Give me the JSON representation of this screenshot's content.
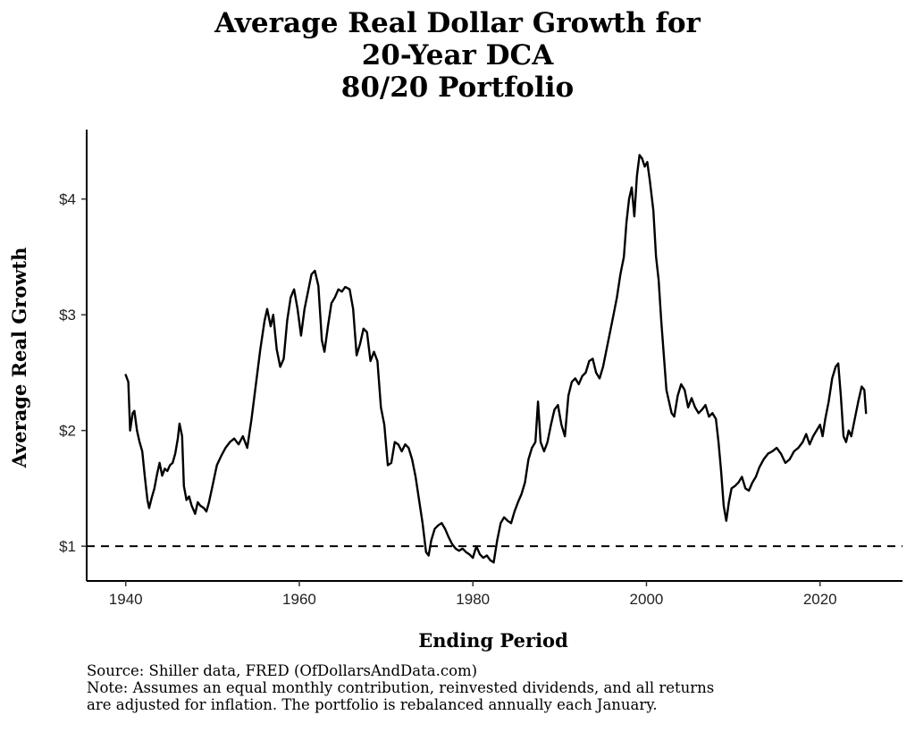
{
  "chart_data": {
    "type": "line",
    "title_lines": [
      "Average Real Dollar Growth for",
      "20-Year DCA",
      "80/20 Portfolio"
    ],
    "xlabel": "Ending Period",
    "ylabel": "Average Real Growth",
    "xlim": [
      1935.5,
      2029.5
    ],
    "ylim": [
      0.7,
      4.6
    ],
    "x_ticks": [
      1940,
      1960,
      1980,
      2000,
      2020
    ],
    "x_tick_labels": [
      "1940",
      "1960",
      "1980",
      "2000",
      "2020"
    ],
    "y_ticks": [
      1,
      2,
      3,
      4
    ],
    "y_tick_labels": [
      "$1",
      "$2",
      "$3",
      "$4"
    ],
    "reference_line": {
      "y": 1,
      "style": "dashed"
    },
    "grid": false,
    "series": [
      {
        "color": "#000000",
        "points": [
          [
            1940.0,
            2.48
          ],
          [
            1940.3,
            2.42
          ],
          [
            1940.5,
            2.0
          ],
          [
            1940.8,
            2.15
          ],
          [
            1941.0,
            2.17
          ],
          [
            1941.3,
            2.0
          ],
          [
            1941.6,
            1.9
          ],
          [
            1941.9,
            1.82
          ],
          [
            1942.2,
            1.6
          ],
          [
            1942.5,
            1.4
          ],
          [
            1942.7,
            1.33
          ],
          [
            1943.0,
            1.42
          ],
          [
            1943.3,
            1.5
          ],
          [
            1943.6,
            1.62
          ],
          [
            1943.9,
            1.72
          ],
          [
            1944.2,
            1.61
          ],
          [
            1944.5,
            1.67
          ],
          [
            1944.8,
            1.65
          ],
          [
            1945.1,
            1.7
          ],
          [
            1945.4,
            1.72
          ],
          [
            1945.7,
            1.8
          ],
          [
            1946.0,
            1.93
          ],
          [
            1946.2,
            2.06
          ],
          [
            1946.5,
            1.95
          ],
          [
            1946.7,
            1.52
          ],
          [
            1947.0,
            1.4
          ],
          [
            1947.3,
            1.43
          ],
          [
            1947.6,
            1.35
          ],
          [
            1948.0,
            1.28
          ],
          [
            1948.3,
            1.38
          ],
          [
            1948.6,
            1.35
          ],
          [
            1949.0,
            1.33
          ],
          [
            1949.3,
            1.3
          ],
          [
            1949.6,
            1.38
          ],
          [
            1950.0,
            1.52
          ],
          [
            1950.5,
            1.7
          ],
          [
            1951.0,
            1.78
          ],
          [
            1951.5,
            1.85
          ],
          [
            1952.0,
            1.9
          ],
          [
            1952.5,
            1.93
          ],
          [
            1953.0,
            1.88
          ],
          [
            1953.5,
            1.95
          ],
          [
            1954.0,
            1.85
          ],
          [
            1954.5,
            2.1
          ],
          [
            1955.0,
            2.4
          ],
          [
            1955.5,
            2.7
          ],
          [
            1956.0,
            2.95
          ],
          [
            1956.3,
            3.05
          ],
          [
            1956.7,
            2.9
          ],
          [
            1957.0,
            3.0
          ],
          [
            1957.4,
            2.7
          ],
          [
            1957.8,
            2.55
          ],
          [
            1958.2,
            2.62
          ],
          [
            1958.6,
            2.95
          ],
          [
            1959.0,
            3.15
          ],
          [
            1959.4,
            3.22
          ],
          [
            1959.8,
            3.05
          ],
          [
            1960.2,
            2.82
          ],
          [
            1960.6,
            3.05
          ],
          [
            1961.0,
            3.2
          ],
          [
            1961.4,
            3.35
          ],
          [
            1961.8,
            3.38
          ],
          [
            1962.2,
            3.25
          ],
          [
            1962.6,
            2.78
          ],
          [
            1962.9,
            2.68
          ],
          [
            1963.3,
            2.9
          ],
          [
            1963.7,
            3.1
          ],
          [
            1964.1,
            3.15
          ],
          [
            1964.5,
            3.22
          ],
          [
            1964.9,
            3.2
          ],
          [
            1965.3,
            3.24
          ],
          [
            1965.8,
            3.22
          ],
          [
            1966.2,
            3.05
          ],
          [
            1966.6,
            2.65
          ],
          [
            1967.0,
            2.75
          ],
          [
            1967.4,
            2.88
          ],
          [
            1967.8,
            2.85
          ],
          [
            1968.2,
            2.6
          ],
          [
            1968.6,
            2.68
          ],
          [
            1969.0,
            2.6
          ],
          [
            1969.4,
            2.2
          ],
          [
            1969.8,
            2.05
          ],
          [
            1970.2,
            1.7
          ],
          [
            1970.6,
            1.72
          ],
          [
            1971.0,
            1.9
          ],
          [
            1971.4,
            1.88
          ],
          [
            1971.8,
            1.82
          ],
          [
            1972.2,
            1.88
          ],
          [
            1972.6,
            1.85
          ],
          [
            1973.0,
            1.75
          ],
          [
            1973.4,
            1.6
          ],
          [
            1973.8,
            1.4
          ],
          [
            1974.2,
            1.2
          ],
          [
            1974.6,
            0.95
          ],
          [
            1974.9,
            0.92
          ],
          [
            1975.2,
            1.05
          ],
          [
            1975.6,
            1.15
          ],
          [
            1976.0,
            1.18
          ],
          [
            1976.4,
            1.2
          ],
          [
            1976.8,
            1.15
          ],
          [
            1977.2,
            1.08
          ],
          [
            1977.6,
            1.02
          ],
          [
            1978.0,
            0.98
          ],
          [
            1978.4,
            0.96
          ],
          [
            1978.8,
            0.98
          ],
          [
            1979.2,
            0.95
          ],
          [
            1979.6,
            0.93
          ],
          [
            1980.0,
            0.9
          ],
          [
            1980.4,
            1.0
          ],
          [
            1980.8,
            0.93
          ],
          [
            1981.2,
            0.9
          ],
          [
            1981.6,
            0.92
          ],
          [
            1982.0,
            0.88
          ],
          [
            1982.4,
            0.86
          ],
          [
            1982.8,
            1.05
          ],
          [
            1983.2,
            1.2
          ],
          [
            1983.6,
            1.25
          ],
          [
            1984.0,
            1.22
          ],
          [
            1984.4,
            1.2
          ],
          [
            1984.8,
            1.3
          ],
          [
            1985.2,
            1.38
          ],
          [
            1985.6,
            1.45
          ],
          [
            1986.0,
            1.55
          ],
          [
            1986.4,
            1.75
          ],
          [
            1986.8,
            1.85
          ],
          [
            1987.2,
            1.9
          ],
          [
            1987.5,
            2.25
          ],
          [
            1987.8,
            1.9
          ],
          [
            1988.2,
            1.82
          ],
          [
            1988.6,
            1.9
          ],
          [
            1989.0,
            2.05
          ],
          [
            1989.4,
            2.18
          ],
          [
            1989.8,
            2.22
          ],
          [
            1990.2,
            2.05
          ],
          [
            1990.6,
            1.95
          ],
          [
            1991.0,
            2.3
          ],
          [
            1991.4,
            2.42
          ],
          [
            1991.8,
            2.45
          ],
          [
            1992.2,
            2.4
          ],
          [
            1992.6,
            2.47
          ],
          [
            1993.0,
            2.5
          ],
          [
            1993.4,
            2.6
          ],
          [
            1993.8,
            2.62
          ],
          [
            1994.2,
            2.5
          ],
          [
            1994.6,
            2.45
          ],
          [
            1995.0,
            2.55
          ],
          [
            1995.4,
            2.7
          ],
          [
            1995.8,
            2.85
          ],
          [
            1996.2,
            3.0
          ],
          [
            1996.6,
            3.15
          ],
          [
            1997.0,
            3.35
          ],
          [
            1997.4,
            3.5
          ],
          [
            1997.7,
            3.8
          ],
          [
            1998.0,
            4.0
          ],
          [
            1998.3,
            4.1
          ],
          [
            1998.6,
            3.85
          ],
          [
            1998.9,
            4.2
          ],
          [
            1999.2,
            4.38
          ],
          [
            1999.5,
            4.35
          ],
          [
            1999.8,
            4.28
          ],
          [
            2000.1,
            4.32
          ],
          [
            2000.4,
            4.15
          ],
          [
            2000.8,
            3.9
          ],
          [
            2001.1,
            3.5
          ],
          [
            2001.4,
            3.3
          ],
          [
            2001.7,
            2.95
          ],
          [
            2002.0,
            2.65
          ],
          [
            2002.3,
            2.35
          ],
          [
            2002.6,
            2.25
          ],
          [
            2002.9,
            2.15
          ],
          [
            2003.2,
            2.12
          ],
          [
            2003.6,
            2.3
          ],
          [
            2004.0,
            2.4
          ],
          [
            2004.4,
            2.35
          ],
          [
            2004.8,
            2.2
          ],
          [
            2005.2,
            2.28
          ],
          [
            2005.6,
            2.2
          ],
          [
            2006.0,
            2.15
          ],
          [
            2006.4,
            2.18
          ],
          [
            2006.8,
            2.22
          ],
          [
            2007.2,
            2.12
          ],
          [
            2007.6,
            2.15
          ],
          [
            2008.0,
            2.1
          ],
          [
            2008.3,
            1.9
          ],
          [
            2008.6,
            1.65
          ],
          [
            2008.9,
            1.35
          ],
          [
            2009.2,
            1.22
          ],
          [
            2009.5,
            1.38
          ],
          [
            2009.8,
            1.5
          ],
          [
            2010.2,
            1.52
          ],
          [
            2010.6,
            1.55
          ],
          [
            2011.0,
            1.6
          ],
          [
            2011.4,
            1.5
          ],
          [
            2011.8,
            1.48
          ],
          [
            2012.2,
            1.55
          ],
          [
            2012.6,
            1.6
          ],
          [
            2013.0,
            1.68
          ],
          [
            2013.5,
            1.75
          ],
          [
            2014.0,
            1.8
          ],
          [
            2014.5,
            1.82
          ],
          [
            2015.0,
            1.85
          ],
          [
            2015.5,
            1.8
          ],
          [
            2016.0,
            1.72
          ],
          [
            2016.5,
            1.75
          ],
          [
            2017.0,
            1.82
          ],
          [
            2017.5,
            1.85
          ],
          [
            2018.0,
            1.9
          ],
          [
            2018.4,
            1.97
          ],
          [
            2018.8,
            1.88
          ],
          [
            2019.2,
            1.95
          ],
          [
            2019.6,
            2.0
          ],
          [
            2020.0,
            2.05
          ],
          [
            2020.3,
            1.95
          ],
          [
            2020.6,
            2.1
          ],
          [
            2021.0,
            2.25
          ],
          [
            2021.4,
            2.45
          ],
          [
            2021.8,
            2.55
          ],
          [
            2022.1,
            2.58
          ],
          [
            2022.4,
            2.3
          ],
          [
            2022.7,
            1.95
          ],
          [
            2023.0,
            1.9
          ],
          [
            2023.3,
            2.0
          ],
          [
            2023.6,
            1.95
          ],
          [
            2024.0,
            2.1
          ],
          [
            2024.4,
            2.25
          ],
          [
            2024.8,
            2.38
          ],
          [
            2025.1,
            2.35
          ],
          [
            2025.3,
            2.15
          ]
        ]
      }
    ]
  },
  "caption": {
    "source": "Source:  Shiller data, FRED (OfDollarsAndData.com)",
    "note_line1": "Note: Assumes an equal monthly contribution, reinvested dividends, and all returns",
    "note_line2": "are adjusted for inflation. The portfolio is rebalanced annually each January."
  }
}
